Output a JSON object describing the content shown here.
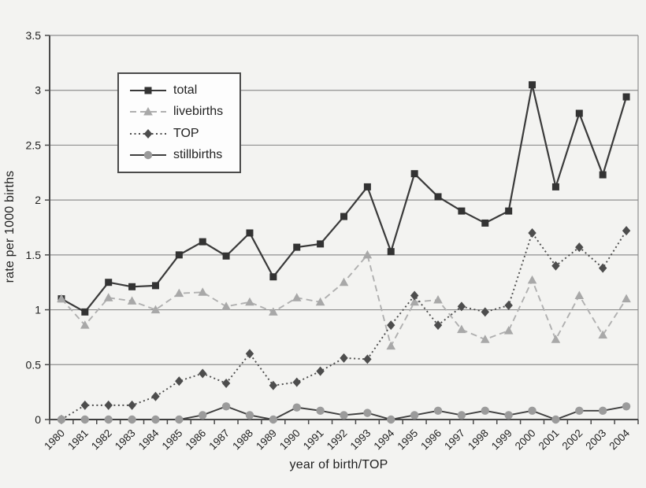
{
  "figure": {
    "background": "#f3f3f1"
  },
  "chart_data": {
    "type": "line",
    "title": "",
    "xlabel": "year of birth/TOP",
    "ylabel": "rate per 1000 births",
    "ylim": [
      0,
      3.5
    ],
    "ytick_values": [
      0,
      0.5,
      1,
      1.5,
      2,
      2.5,
      3,
      3.5
    ],
    "ytick_labels": [
      "0",
      "0.5",
      "1",
      "1.5",
      "2",
      "2.5",
      "3",
      "3.5"
    ],
    "grid": true,
    "legend_position": "upper-left-inside",
    "categories": [
      "1980",
      "1981",
      "1982",
      "1983",
      "1984",
      "1985",
      "1986",
      "1987",
      "1988",
      "1989",
      "1990",
      "1991",
      "1992",
      "1993",
      "1994",
      "1995",
      "1996",
      "1997",
      "1998",
      "1999",
      "2000",
      "2001",
      "2002",
      "2003",
      "2004"
    ],
    "series": [
      {
        "name": "total",
        "marker": "square",
        "line_style": "solid",
        "line_color": "#3a3a3a",
        "marker_color": "#333333",
        "values": [
          1.1,
          0.98,
          1.25,
          1.21,
          1.22,
          1.5,
          1.62,
          1.49,
          1.7,
          1.3,
          1.57,
          1.6,
          1.85,
          2.12,
          1.53,
          2.24,
          2.03,
          1.9,
          1.79,
          1.9,
          3.05,
          2.12,
          2.79,
          2.23,
          2.94
        ]
      },
      {
        "name": "livebirths",
        "marker": "triangle",
        "line_style": "dashed",
        "line_color": "#b0b0b0",
        "marker_color": "#a8a8a8",
        "values": [
          1.1,
          0.86,
          1.11,
          1.08,
          1.0,
          1.15,
          1.16,
          1.03,
          1.07,
          0.98,
          1.11,
          1.07,
          1.25,
          1.5,
          0.67,
          1.07,
          1.09,
          0.82,
          0.73,
          0.81,
          1.27,
          0.73,
          1.13,
          0.77,
          1.1
        ]
      },
      {
        "name": "TOP",
        "marker": "diamond",
        "line_style": "dotted",
        "line_color": "#4d4d4d",
        "marker_color": "#4d4d4d",
        "values": [
          0.0,
          0.13,
          0.13,
          0.13,
          0.21,
          0.35,
          0.42,
          0.33,
          0.6,
          0.31,
          0.34,
          0.44,
          0.56,
          0.55,
          0.86,
          1.13,
          0.86,
          1.03,
          0.98,
          1.04,
          1.7,
          1.4,
          1.57,
          1.38,
          1.72
        ]
      },
      {
        "name": "stillbirths",
        "marker": "circle",
        "line_style": "solid",
        "line_color": "#3f3f3f",
        "marker_color": "#9b9b9b",
        "values": [
          0.0,
          0.0,
          0.0,
          0.0,
          0.0,
          0.0,
          0.04,
          0.12,
          0.04,
          0.0,
          0.11,
          0.08,
          0.04,
          0.06,
          0.0,
          0.04,
          0.08,
          0.04,
          0.08,
          0.04,
          0.08,
          0.0,
          0.08,
          0.08,
          0.12
        ]
      }
    ],
    "colors": {
      "background": "#f3f3f1",
      "gridline": "#8f8f8f",
      "axis": "#4a4a4a",
      "text": "#1f1f1f",
      "legend_background": "#fdfdfd",
      "legend_border": "#4a4a4a"
    }
  }
}
